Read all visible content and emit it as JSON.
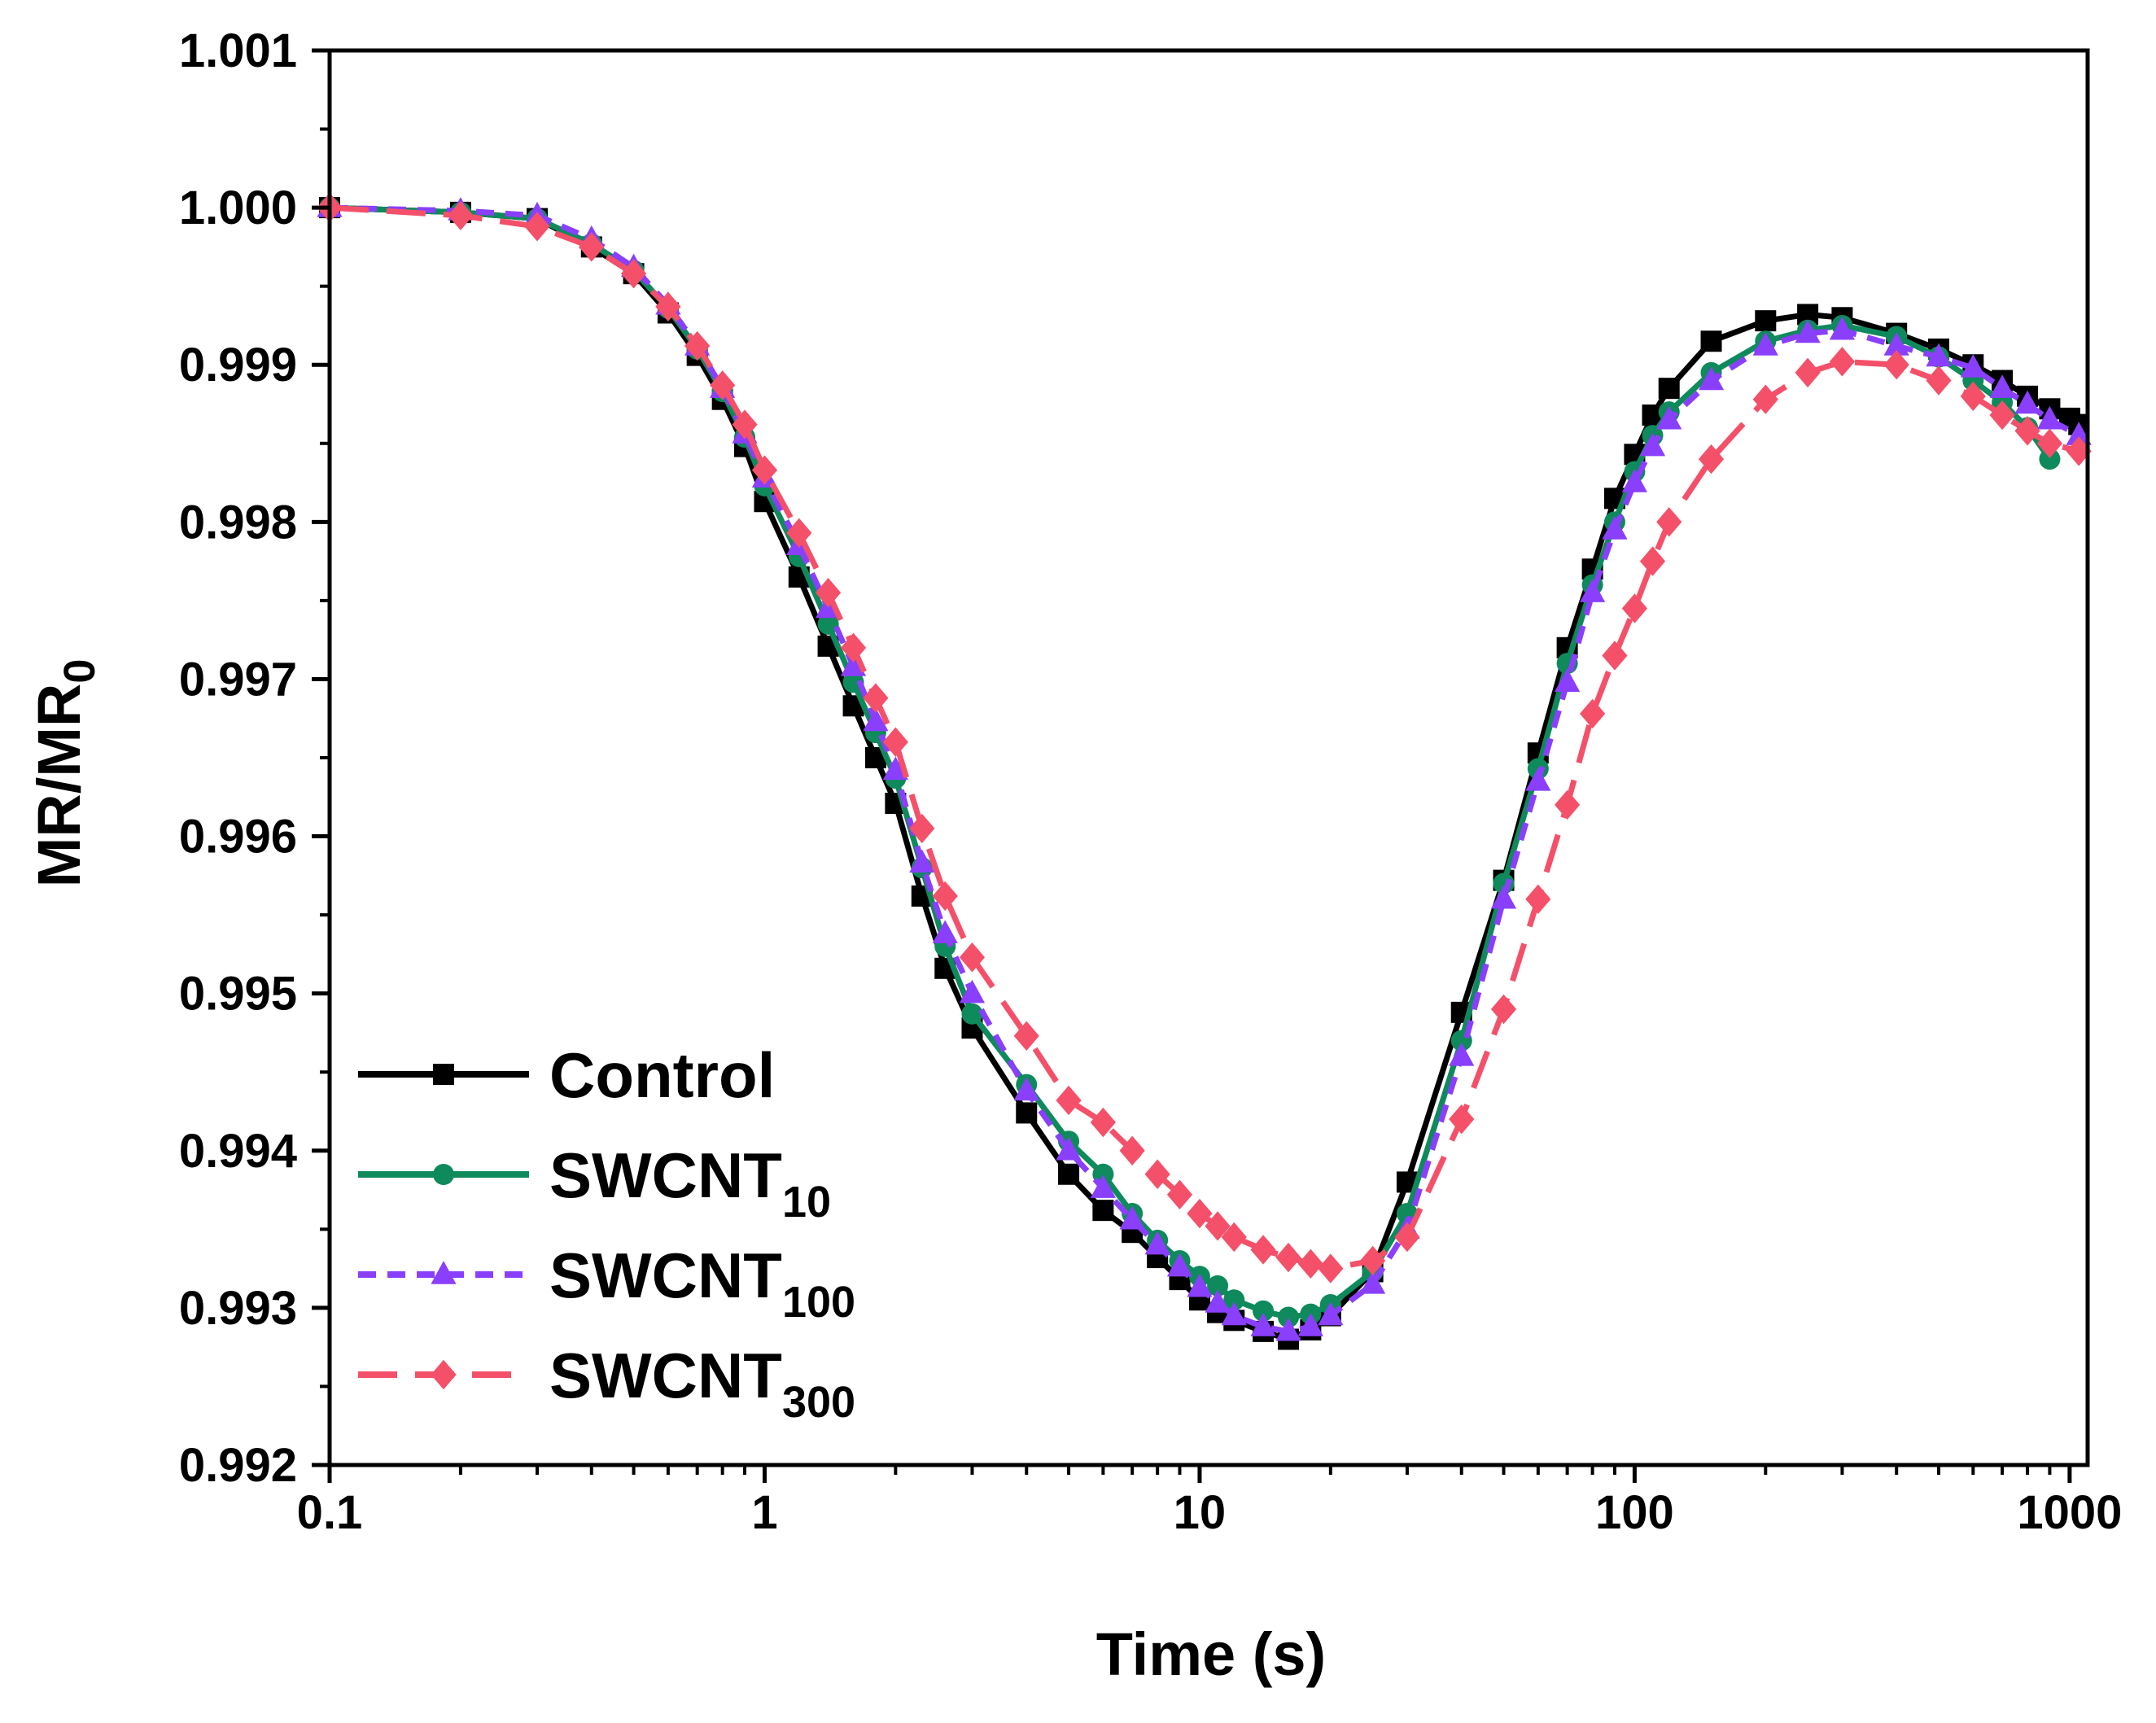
{
  "chart_data": {
    "type": "line",
    "title": "",
    "xlabel": "Time (s)",
    "ylabel": "MR/MR",
    "ylabel_sub": "0",
    "x_scale": "log",
    "xlim": [
      0.1,
      1100
    ],
    "ylim": [
      0.992,
      1.001
    ],
    "x_ticks": [
      0.1,
      1,
      10,
      100,
      1000
    ],
    "x_tick_labels": [
      "0.1",
      "1",
      "10",
      "100",
      "1000"
    ],
    "y_ticks": [
      0.992,
      0.993,
      0.994,
      0.995,
      0.996,
      0.997,
      0.998,
      0.999,
      1.0,
      1.001
    ],
    "y_tick_labels": [
      "0.992",
      "0.993",
      "0.994",
      "0.995",
      "0.996",
      "0.997",
      "0.998",
      "0.999",
      "1.000",
      "1.001"
    ],
    "legend_position": "bottom-left",
    "series": [
      {
        "name": "Control",
        "name_base": "Control",
        "name_sub": "",
        "color": "#000000",
        "dash": "solid",
        "marker": "square",
        "x": [
          0.1,
          0.2,
          0.3,
          0.4,
          0.5,
          0.6,
          0.7,
          0.8,
          0.9,
          1,
          1.2,
          1.4,
          1.6,
          1.8,
          2,
          2.3,
          2.6,
          3,
          4,
          5,
          6,
          7,
          8,
          9,
          10,
          11,
          12,
          14,
          16,
          18,
          20,
          25,
          30,
          40,
          50,
          60,
          70,
          80,
          90,
          100,
          110,
          120,
          150,
          200,
          250,
          300,
          400,
          500,
          600,
          700,
          800,
          900,
          1000,
          1050
        ],
        "y": [
          1.0,
          0.99997,
          0.99993,
          0.99975,
          0.99958,
          0.99933,
          0.99906,
          0.99878,
          0.99848,
          0.99813,
          0.99765,
          0.99721,
          0.99683,
          0.9965,
          0.99621,
          0.99562,
          0.99516,
          0.99478,
          0.99424,
          0.99385,
          0.99362,
          0.99348,
          0.99332,
          0.99318,
          0.99305,
          0.99297,
          0.99292,
          0.99285,
          0.9928,
          0.99286,
          0.99295,
          0.99323,
          0.9938,
          0.99488,
          0.99572,
          0.99653,
          0.9972,
          0.9977,
          0.99815,
          0.99843,
          0.99868,
          0.99885,
          0.99915,
          0.99928,
          0.99932,
          0.9993,
          0.9992,
          0.9991,
          0.999,
          0.9989,
          0.9988,
          0.99872,
          0.99866,
          0.99862
        ]
      },
      {
        "name": "SWCNT10",
        "name_base": "SWCNT",
        "name_sub": "10",
        "color": "#0e8a5c",
        "dash": "solid",
        "marker": "circle",
        "x": [
          0.1,
          0.2,
          0.3,
          0.4,
          0.5,
          0.6,
          0.7,
          0.8,
          0.9,
          1,
          1.2,
          1.4,
          1.6,
          1.8,
          2,
          2.3,
          2.6,
          3,
          4,
          5,
          6,
          7,
          8,
          9,
          10,
          11,
          12,
          14,
          16,
          18,
          20,
          25,
          30,
          40,
          50,
          60,
          70,
          80,
          90,
          100,
          110,
          120,
          150,
          200,
          250,
          300,
          400,
          500,
          600,
          700,
          800,
          900
        ],
        "y": [
          1.0,
          0.99997,
          0.99993,
          0.99977,
          0.9996,
          0.99936,
          0.9991,
          0.99883,
          0.99854,
          0.99823,
          0.99778,
          0.99735,
          0.99698,
          0.99666,
          0.99637,
          0.9958,
          0.9953,
          0.99487,
          0.99442,
          0.99406,
          0.99385,
          0.9936,
          0.99343,
          0.9933,
          0.9932,
          0.99314,
          0.99305,
          0.99298,
          0.99294,
          0.99296,
          0.99302,
          0.99323,
          0.9936,
          0.9947,
          0.9957,
          0.99643,
          0.9971,
          0.9976,
          0.998,
          0.99832,
          0.99855,
          0.9987,
          0.99895,
          0.99915,
          0.99922,
          0.99925,
          0.99918,
          0.99905,
          0.9989,
          0.99876,
          0.9986,
          0.9984
        ]
      },
      {
        "name": "SWCNT100",
        "name_base": "SWCNT",
        "name_sub": "100",
        "color": "#8a3ffc",
        "dash": "dashed",
        "marker": "triangle",
        "x": [
          0.1,
          0.2,
          0.3,
          0.4,
          0.5,
          0.6,
          0.7,
          0.8,
          0.9,
          1,
          1.2,
          1.4,
          1.6,
          1.8,
          2,
          2.3,
          2.6,
          3,
          4,
          5,
          6,
          7,
          8,
          9,
          10,
          11,
          12,
          14,
          16,
          18,
          20,
          25,
          30,
          40,
          50,
          60,
          70,
          80,
          90,
          100,
          110,
          120,
          150,
          200,
          250,
          300,
          400,
          500,
          600,
          700,
          800,
          900,
          1050
        ],
        "y": [
          1.0,
          0.99998,
          0.99995,
          0.9998,
          0.99962,
          0.99938,
          0.99912,
          0.99885,
          0.99856,
          0.99828,
          0.99785,
          0.99745,
          0.99708,
          0.99673,
          0.99642,
          0.99583,
          0.99538,
          0.995,
          0.99438,
          0.994,
          0.99376,
          0.99356,
          0.9934,
          0.99326,
          0.99313,
          0.99303,
          0.99295,
          0.99288,
          0.99285,
          0.99288,
          0.99295,
          0.99315,
          0.9935,
          0.9946,
          0.9956,
          0.99635,
          0.99698,
          0.99755,
          0.99795,
          0.99825,
          0.99848,
          0.99865,
          0.9989,
          0.99912,
          0.9992,
          0.99922,
          0.99912,
          0.99905,
          0.99898,
          0.99885,
          0.99875,
          0.99865,
          0.99855
        ]
      },
      {
        "name": "SWCNT300",
        "name_base": "SWCNT",
        "name_sub": "300",
        "color": "#f4506a",
        "dash": "longdash",
        "marker": "diamond",
        "x": [
          0.1,
          0.2,
          0.3,
          0.4,
          0.5,
          0.6,
          0.7,
          0.8,
          0.9,
          1,
          1.2,
          1.4,
          1.6,
          1.8,
          2,
          2.3,
          2.6,
          3,
          4,
          5,
          6,
          7,
          8,
          9,
          10,
          11,
          12,
          14,
          16,
          18,
          20,
          25,
          30,
          40,
          50,
          60,
          70,
          80,
          90,
          100,
          110,
          120,
          150,
          200,
          250,
          300,
          400,
          500,
          600,
          700,
          800,
          900,
          1050
        ],
        "y": [
          1.0,
          0.99995,
          0.99988,
          0.99975,
          0.99958,
          0.99937,
          0.99912,
          0.99887,
          0.99862,
          0.99833,
          0.99793,
          0.99755,
          0.9972,
          0.99688,
          0.9966,
          0.99605,
          0.99562,
          0.99523,
          0.99473,
          0.99432,
          0.99418,
          0.994,
          0.99385,
          0.99372,
          0.9936,
          0.99352,
          0.99345,
          0.99337,
          0.99332,
          0.99328,
          0.99325,
          0.9933,
          0.99345,
          0.9942,
          0.9949,
          0.9956,
          0.9962,
          0.99678,
          0.99715,
          0.99745,
          0.99775,
          0.998,
          0.9984,
          0.99878,
          0.99895,
          0.99902,
          0.999,
          0.9989,
          0.9988,
          0.99868,
          0.99858,
          0.9985,
          0.99845
        ]
      }
    ]
  }
}
